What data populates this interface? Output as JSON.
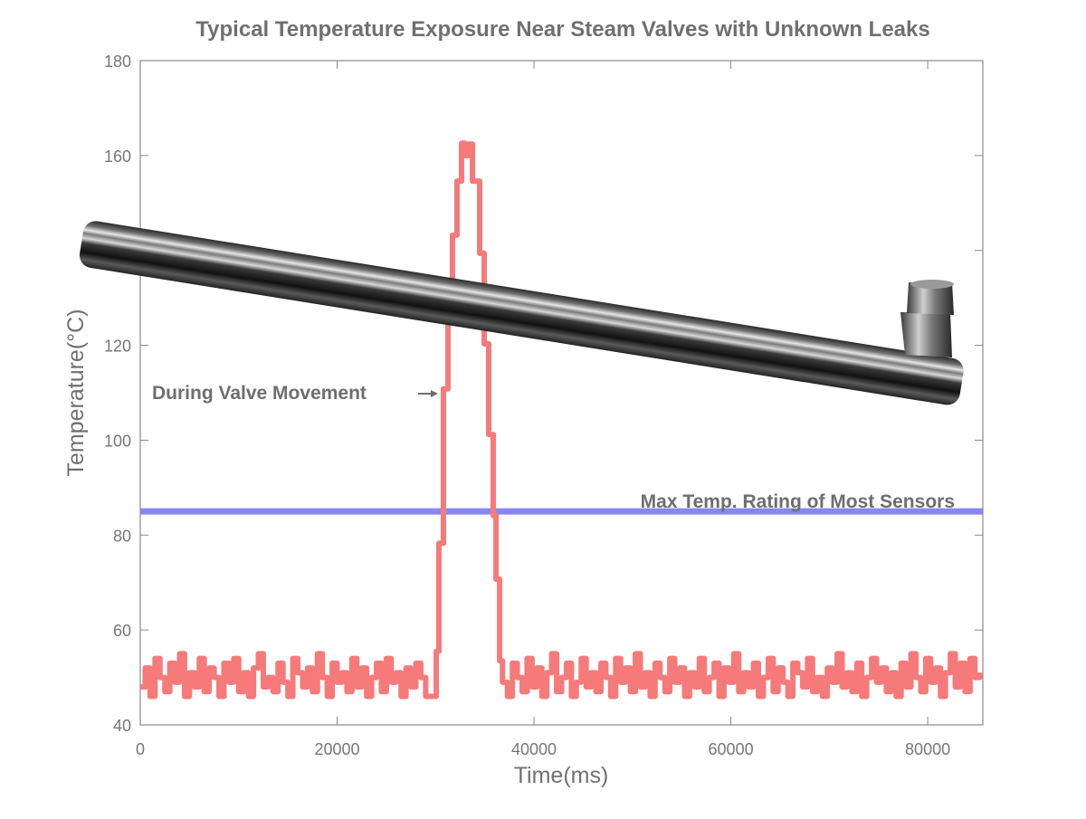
{
  "chart_data": {
    "type": "line",
    "title": "Typical Temperature Exposure Near Steam Valves with Unknown Leaks",
    "xlabel": "Time(ms)",
    "ylabel": "Temperature(°C)",
    "xlim": [
      0,
      85600
    ],
    "ylim": [
      40,
      180
    ],
    "xticks": [
      0,
      20000,
      40000,
      60000,
      80000
    ],
    "yticks": [
      40,
      60,
      80,
      100,
      120,
      140,
      160,
      180
    ],
    "xtick_labels": [
      "0",
      "20000",
      "40000",
      "60000",
      "80000"
    ],
    "ytick_labels": [
      "40",
      "60",
      "80",
      "100",
      "120",
      "140",
      "160",
      "180"
    ],
    "grid": false,
    "series": [
      {
        "name": "Temperature",
        "color": "#f77a7a",
        "segments": [
          {
            "x_start": 0,
            "x_step": 500,
            "values": [
              48,
              52,
              46,
              54,
              50,
              47,
              53,
              49,
              55,
              46,
              51,
              48,
              54,
              47,
              52,
              50,
              46,
              53,
              49,
              54,
              47,
              51,
              46,
              52,
              55,
              48,
              50,
              47,
              53,
              49,
              46,
              54,
              51,
              48,
              52,
              47,
              55,
              50,
              46,
              53,
              49,
              51,
              47,
              54,
              48,
              52,
              46,
              50,
              53,
              47,
              54,
              49,
              51,
              46,
              52,
              48,
              53,
              50,
              46
            ]
          },
          {
            "x": [
              29430,
              30070,
              30340,
              30800,
              31260,
              31720,
              32180,
              32640,
              33000,
              33380,
              33750,
              34480,
              34940,
              35400,
              35860,
              36140,
              36510
            ],
            "values": [
              46,
              55.5,
              78.3,
              110.8,
              127.9,
              143.2,
              154.6,
              162.6,
              160,
              162.4,
              154.6,
              139.4,
              120.3,
              101.2,
              84.1,
              70.7,
              53.5
            ]
          },
          {
            "x_start": 36800,
            "x_step": 500,
            "values": [
              49,
              46,
              53,
              50,
              47,
              54,
              48,
              52,
              46,
              51,
              55,
              47,
              50,
              53,
              46,
              49,
              54,
              48,
              51,
              47,
              53,
              50,
              46,
              54,
              49,
              52,
              47,
              55,
              48,
              51,
              46,
              53,
              50,
              47,
              54,
              49,
              52,
              46,
              51,
              48,
              54,
              47,
              50,
              53,
              46,
              52,
              49,
              55,
              47,
              51,
              48,
              53,
              46,
              50,
              54,
              47,
              52,
              49,
              46,
              53,
              51,
              48,
              54,
              47,
              50,
              46,
              52,
              49,
              55,
              48,
              51,
              47,
              53,
              46,
              50,
              54,
              49,
              52,
              47,
              51,
              46,
              53,
              48,
              55,
              50,
              47,
              54,
              49,
              52,
              46,
              51,
              55,
              48,
              53,
              47,
              54,
              50,
              51
            ]
          }
        ]
      },
      {
        "name": "Max Temp. Rating of Most Sensors",
        "color": "#7b7bf0",
        "x": [
          0,
          85600
        ],
        "values": [
          85,
          85
        ]
      }
    ],
    "annotations": [
      {
        "text": "During Valve Movement",
        "points_to": [
          30500,
          110
        ]
      },
      {
        "text": "Max Temp. Rating of Most Sensors",
        "at": [
          64000,
          87
        ]
      }
    ]
  }
}
